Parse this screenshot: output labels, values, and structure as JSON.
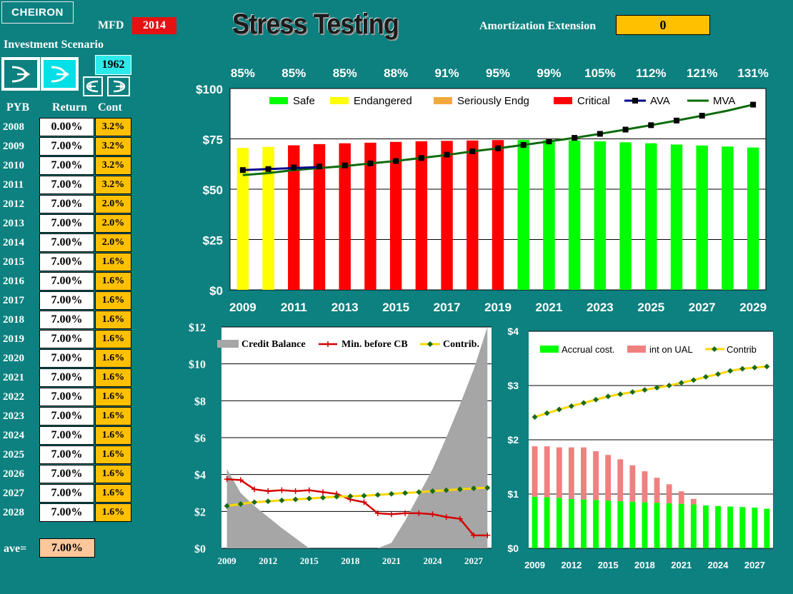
{
  "header": {
    "logo_text": "CHEIRON",
    "mfd_label": "MFD",
    "mfd_value": "2014",
    "title": "Stress Testing",
    "amortization_label": "Amortization Extension",
    "amortization_value": "0"
  },
  "scenario": {
    "label": "Investment Scenario",
    "year": "1962",
    "icons": [
      "scenario-a-icon",
      "scenario-b-icon",
      "prev-icon",
      "next-icon"
    ]
  },
  "table": {
    "headers": [
      "PYB",
      "Return",
      "Cont"
    ],
    "rows": [
      {
        "year": "2008",
        "ret": "0.00%",
        "cont": "3.2%"
      },
      {
        "year": "2009",
        "ret": "7.00%",
        "cont": "3.2%"
      },
      {
        "year": "2010",
        "ret": "7.00%",
        "cont": "3.2%"
      },
      {
        "year": "2011",
        "ret": "7.00%",
        "cont": "3.2%"
      },
      {
        "year": "2012",
        "ret": "7.00%",
        "cont": "2.0%"
      },
      {
        "year": "2013",
        "ret": "7.00%",
        "cont": "2.0%"
      },
      {
        "year": "2014",
        "ret": "7.00%",
        "cont": "2.0%"
      },
      {
        "year": "2015",
        "ret": "7.00%",
        "cont": "1.6%"
      },
      {
        "year": "2016",
        "ret": "7.00%",
        "cont": "1.6%"
      },
      {
        "year": "2017",
        "ret": "7.00%",
        "cont": "1.6%"
      },
      {
        "year": "2018",
        "ret": "7.00%",
        "cont": "1.6%"
      },
      {
        "year": "2019",
        "ret": "7.00%",
        "cont": "1.6%"
      },
      {
        "year": "2020",
        "ret": "7.00%",
        "cont": "1.6%"
      },
      {
        "year": "2021",
        "ret": "7.00%",
        "cont": "1.6%"
      },
      {
        "year": "2022",
        "ret": "7.00%",
        "cont": "1.6%"
      },
      {
        "year": "2023",
        "ret": "7.00%",
        "cont": "1.6%"
      },
      {
        "year": "2024",
        "ret": "7.00%",
        "cont": "1.6%"
      },
      {
        "year": "2025",
        "ret": "7.00%",
        "cont": "1.6%"
      },
      {
        "year": "2026",
        "ret": "7.00%",
        "cont": "1.6%"
      },
      {
        "year": "2027",
        "ret": "7.00%",
        "cont": "1.6%"
      },
      {
        "year": "2028",
        "ret": "7.00%",
        "cont": "1.6%"
      }
    ],
    "ave_label": "ave=",
    "ave_value": "7.00%"
  },
  "colors": {
    "background": "#0d8080",
    "safe": "#00ff00",
    "endangered": "#ffff00",
    "seriously": "#f2a93b",
    "critical": "#ff0000",
    "ava": "#00008b",
    "mva": "#0b6b0b",
    "credit": "#a6a6a6",
    "min_cb": "#d40000",
    "contrib": "#ffd700",
    "contrib_marker": "#1a6b1a",
    "int_ual": "#f08080",
    "accent_orange": "#ffc000",
    "mfd_red": "#e41212"
  },
  "chart_data": [
    {
      "type": "bar",
      "legend": [
        "Safe",
        "Endangered",
        "Seriously Endg",
        "Critical",
        "AVA",
        "MVA"
      ],
      "legend_position": "top",
      "funded_labels": [
        "85%",
        "85%",
        "85%",
        "88%",
        "91%",
        "95%",
        "99%",
        "105%",
        "112%",
        "121%",
        "131%"
      ],
      "ytick_labels": [
        "$100",
        "$75",
        "$50",
        "$25",
        "$0"
      ],
      "xtick_labels": [
        "2009",
        "2011",
        "2013",
        "2015",
        "2017",
        "2019",
        "2021",
        "2023",
        "2025",
        "2027",
        "2029"
      ],
      "ylim": [
        0,
        100
      ],
      "grid": true,
      "x": [
        2009,
        2010,
        2011,
        2012,
        2013,
        2014,
        2015,
        2016,
        2017,
        2018,
        2019,
        2020,
        2021,
        2022,
        2023,
        2024,
        2025,
        2026,
        2027,
        2028,
        2029
      ],
      "bar_status": [
        "endangered",
        "endangered",
        "critical",
        "critical",
        "critical",
        "critical",
        "critical",
        "critical",
        "critical",
        "critical",
        "critical",
        "safe",
        "safe",
        "safe",
        "safe",
        "safe",
        "safe",
        "safe",
        "safe",
        "safe",
        "safe"
      ],
      "bar_values": [
        70.5,
        71.0,
        71.8,
        72.4,
        72.8,
        73.1,
        73.5,
        73.8,
        74.0,
        74.2,
        74.4,
        74.5,
        74.4,
        74.2,
        73.8,
        73.3,
        72.8,
        72.2,
        71.7,
        71.2,
        70.7
      ],
      "series": [
        {
          "name": "AVA",
          "values": [
            59.5,
            60.0,
            60.5,
            61.0,
            null,
            null,
            null,
            null,
            null,
            null,
            null,
            null,
            null,
            null,
            null,
            null,
            null,
            null,
            null,
            null,
            null
          ]
        },
        {
          "name": "MVA",
          "values": [
            57,
            58,
            59.5,
            60.5,
            61.5,
            62.8,
            64,
            65.5,
            67,
            68.8,
            70.3,
            72,
            73.7,
            75.5,
            77.5,
            79.6,
            81.8,
            84.1,
            86.5,
            89.0,
            92.0
          ]
        },
        {
          "name": "marker",
          "values": [
            59.5,
            60.0,
            60.8,
            61.3,
            61.8,
            62.8,
            64.0,
            65.5,
            67.2,
            68.8,
            70.3,
            72.0,
            73.7,
            75.5,
            77.5,
            79.6,
            81.8,
            84.1,
            86.5,
            null,
            92.0
          ]
        }
      ]
    },
    {
      "type": "area",
      "legend": [
        "Credit Balance",
        "Min. before CB",
        "Contrib."
      ],
      "ytick_labels": [
        "$12",
        "$10",
        "$8",
        "$6",
        "$4",
        "$2",
        "$0"
      ],
      "xtick_labels": [
        "2009",
        "2012",
        "2015",
        "2018",
        "2021",
        "2024",
        "2027"
      ],
      "ylim": [
        0,
        12
      ],
      "grid": true,
      "credit_balance": {
        "x": [
          2009,
          2010,
          2011,
          2012,
          2013,
          2014,
          2015,
          2016,
          2017,
          2018,
          2019,
          2020,
          2021,
          2022,
          2023,
          2024,
          2025,
          2026,
          2027,
          2028
        ],
        "values": [
          4.3,
          3.0,
          2.3,
          1.7,
          1.1,
          0.55,
          0,
          0,
          0,
          0,
          0,
          0,
          0.3,
          1.5,
          2.9,
          4.3,
          6.0,
          7.8,
          9.7,
          12.2
        ]
      },
      "series": [
        {
          "name": "Min. before CB",
          "x": [
            2009,
            2010,
            2011,
            2012,
            2013,
            2014,
            2015,
            2016,
            2017,
            2018,
            2019,
            2020,
            2021,
            2022,
            2023,
            2024,
            2025,
            2026,
            2027,
            2028
          ],
          "values": [
            3.75,
            3.7,
            3.2,
            3.1,
            3.15,
            3.1,
            3.15,
            3.05,
            2.95,
            2.65,
            2.5,
            1.9,
            1.85,
            1.9,
            1.9,
            1.85,
            1.7,
            1.6,
            0.7,
            0.7
          ]
        },
        {
          "name": "Contrib.",
          "x": [
            2009,
            2010,
            2011,
            2012,
            2013,
            2014,
            2015,
            2016,
            2017,
            2018,
            2019,
            2020,
            2021,
            2022,
            2023,
            2024,
            2025,
            2026,
            2027,
            2028
          ],
          "values": [
            2.3,
            2.4,
            2.5,
            2.55,
            2.6,
            2.65,
            2.7,
            2.75,
            2.8,
            2.82,
            2.85,
            2.9,
            2.95,
            3.0,
            3.05,
            3.1,
            3.15,
            3.2,
            3.25,
            3.28
          ]
        }
      ]
    },
    {
      "type": "bar",
      "legend": [
        "Accrual cost.",
        "int on UAL",
        "Contrib"
      ],
      "ytick_labels": [
        "$4",
        "$3",
        "$2",
        "$1",
        "$0"
      ],
      "xtick_labels": [
        "2009",
        "2012",
        "2015",
        "2018",
        "2021",
        "2024",
        "2027"
      ],
      "ylim": [
        0,
        4
      ],
      "grid": true,
      "x": [
        2009,
        2010,
        2011,
        2012,
        2013,
        2014,
        2015,
        2016,
        2017,
        2018,
        2019,
        2020,
        2021,
        2022,
        2023,
        2024,
        2025,
        2026,
        2027,
        2028
      ],
      "series": [
        {
          "name": "Accrual cost.",
          "values": [
            0.95,
            0.94,
            0.93,
            0.91,
            0.9,
            0.89,
            0.88,
            0.87,
            0.86,
            0.85,
            0.84,
            0.83,
            0.82,
            0.81,
            0.79,
            0.78,
            0.77,
            0.76,
            0.75,
            0.73
          ]
        },
        {
          "name": "int on UAL",
          "values": [
            0.93,
            0.94,
            0.93,
            0.95,
            0.96,
            0.9,
            0.84,
            0.77,
            0.67,
            0.57,
            0.46,
            0.35,
            0.23,
            0.1,
            0,
            0,
            0,
            0,
            0,
            0
          ]
        },
        {
          "name": "Contrib",
          "values": [
            2.42,
            2.49,
            2.56,
            2.62,
            2.68,
            2.74,
            2.8,
            2.84,
            2.88,
            2.92,
            2.96,
            3.0,
            3.05,
            3.1,
            3.16,
            3.21,
            3.27,
            3.31,
            3.33,
            3.35
          ]
        }
      ]
    }
  ]
}
